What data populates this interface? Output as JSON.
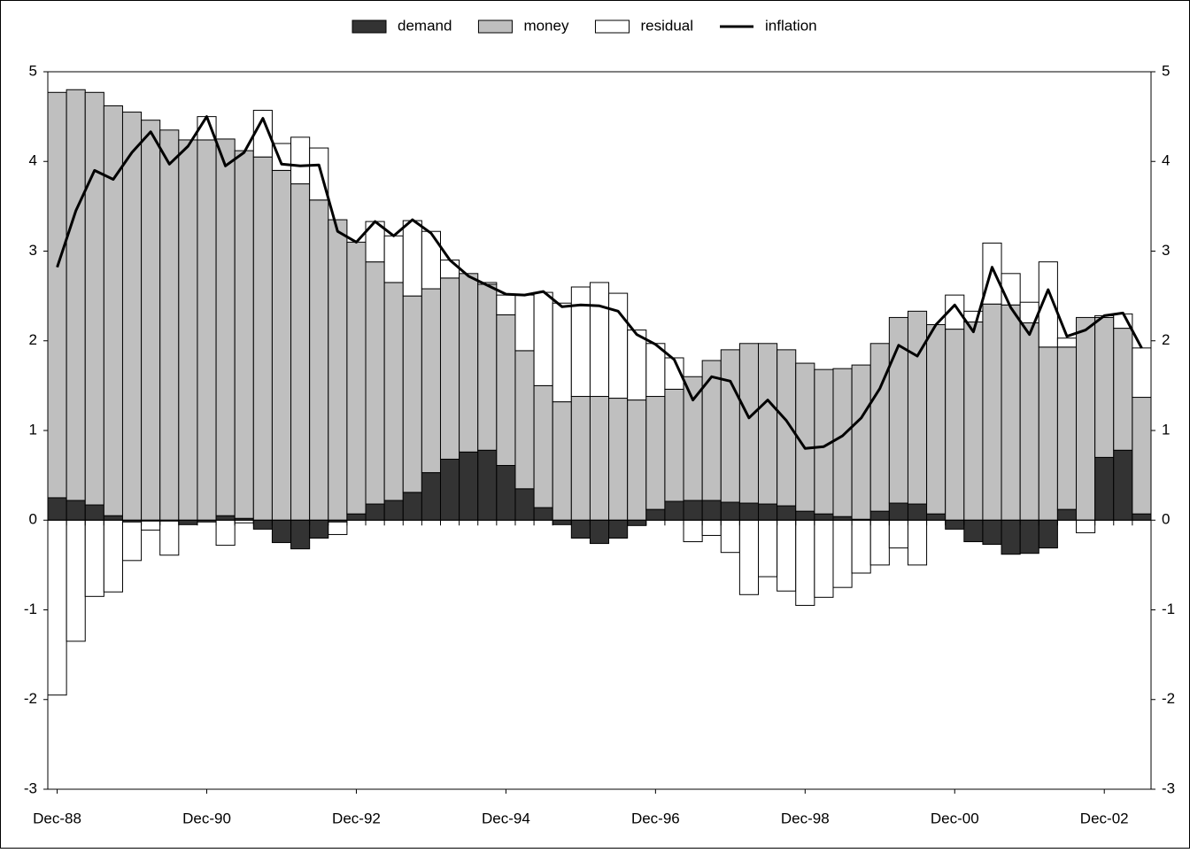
{
  "chart_data": {
    "type": "bar",
    "categories": [
      "Dec-88",
      null,
      null,
      null,
      null,
      null,
      null,
      null,
      "Dec-90",
      null,
      null,
      null,
      null,
      null,
      null,
      null,
      "Dec-92",
      null,
      null,
      null,
      null,
      null,
      null,
      null,
      "Dec-94",
      null,
      null,
      null,
      null,
      null,
      null,
      null,
      "Dec-96",
      null,
      null,
      null,
      null,
      null,
      null,
      null,
      "Dec-98",
      null,
      null,
      null,
      null,
      null,
      null,
      null,
      "Dec-00",
      null,
      null,
      null,
      null,
      null,
      null,
      null,
      "Dec-02",
      null,
      null
    ],
    "series": [
      {
        "name": "demand",
        "color": "#333333",
        "values": [
          0.25,
          0.22,
          0.17,
          0.05,
          -0.02,
          -0.01,
          -0.01,
          -0.05,
          -0.02,
          0.05,
          0.02,
          -0.1,
          -0.25,
          -0.32,
          -0.2,
          -0.02,
          0.07,
          0.18,
          0.22,
          0.31,
          0.53,
          0.68,
          0.76,
          0.78,
          0.61,
          0.35,
          0.14,
          -0.05,
          -0.2,
          -0.26,
          -0.2,
          -0.06,
          0.12,
          0.21,
          0.22,
          0.22,
          0.2,
          0.19,
          0.18,
          0.16,
          0.1,
          0.07,
          0.04,
          0.01,
          0.1,
          0.19,
          0.18,
          0.07,
          -0.1,
          -0.24,
          -0.27,
          -0.38,
          -0.37,
          -0.31,
          0.12,
          0,
          0.7,
          0.78,
          0.07
        ]
      },
      {
        "name": "money",
        "color": "#bfbfbf",
        "values": [
          4.52,
          4.58,
          4.6,
          4.57,
          4.55,
          4.46,
          4.35,
          4.24,
          4.24,
          4.2,
          4.1,
          4.05,
          3.9,
          3.75,
          3.57,
          3.35,
          3.03,
          2.7,
          2.43,
          2.19,
          2.05,
          2.02,
          1.99,
          1.85,
          1.68,
          1.54,
          1.36,
          1.32,
          1.38,
          1.38,
          1.36,
          1.34,
          1.26,
          1.25,
          1.38,
          1.56,
          1.7,
          1.78,
          1.79,
          1.74,
          1.65,
          1.61,
          1.65,
          1.72,
          1.87,
          2.07,
          2.15,
          2.11,
          2.13,
          2.21,
          2.41,
          2.4,
          2.2,
          1.93,
          1.81,
          2.26,
          1.56,
          1.36,
          1.3
        ]
      },
      {
        "name": "residual",
        "color": "#ffffff",
        "values": [
          -1.95,
          -1.35,
          -0.85,
          -0.8,
          -0.43,
          -0.1,
          -0.38,
          0,
          0.26,
          -0.28,
          -0.03,
          0.52,
          0.3,
          0.52,
          0.58,
          -0.14,
          0,
          0.45,
          0.52,
          0.84,
          0.64,
          0.2,
          0,
          0.02,
          0.22,
          0.62,
          1.04,
          1.1,
          1.22,
          1.27,
          1.17,
          0.78,
          0.59,
          0.35,
          -0.24,
          -0.17,
          -0.36,
          -0.83,
          -0.63,
          -0.79,
          -0.95,
          -0.86,
          -0.75,
          -0.59,
          -0.5,
          -0.31,
          -0.5,
          0,
          0.38,
          0.12,
          0.68,
          0.35,
          0.23,
          0.95,
          0.1,
          -0.14,
          0.02,
          0.16,
          0.55
        ]
      },
      {
        "name": "inflation",
        "color": "#000000",
        "type": "line",
        "values": [
          2.82,
          3.45,
          3.9,
          3.8,
          4.1,
          4.33,
          3.97,
          4.17,
          4.5,
          3.95,
          4.1,
          4.48,
          3.97,
          3.95,
          3.96,
          3.22,
          3.1,
          3.33,
          3.17,
          3.35,
          3.2,
          2.9,
          2.72,
          2.62,
          2.52,
          2.51,
          2.55,
          2.38,
          2.4,
          2.39,
          2.33,
          2.07,
          1.96,
          1.79,
          1.34,
          1.6,
          1.55,
          1.14,
          1.34,
          1.11,
          0.8,
          0.82,
          0.94,
          1.14,
          1.47,
          1.95,
          1.83,
          2.18,
          2.4,
          2.1,
          2.82,
          2.37,
          2.07,
          2.57,
          2.05,
          2.12,
          2.28,
          2.31,
          1.92
        ]
      }
    ],
    "ylim": [
      -3,
      5
    ],
    "yticks": [
      -3,
      -2,
      -1,
      0,
      1,
      2,
      3,
      4,
      5
    ],
    "y2lim": [
      -3,
      5
    ],
    "y2ticks": [
      -3,
      -2,
      -1,
      0,
      1,
      2,
      3,
      4,
      5
    ],
    "stacked": true,
    "legend": "top"
  }
}
